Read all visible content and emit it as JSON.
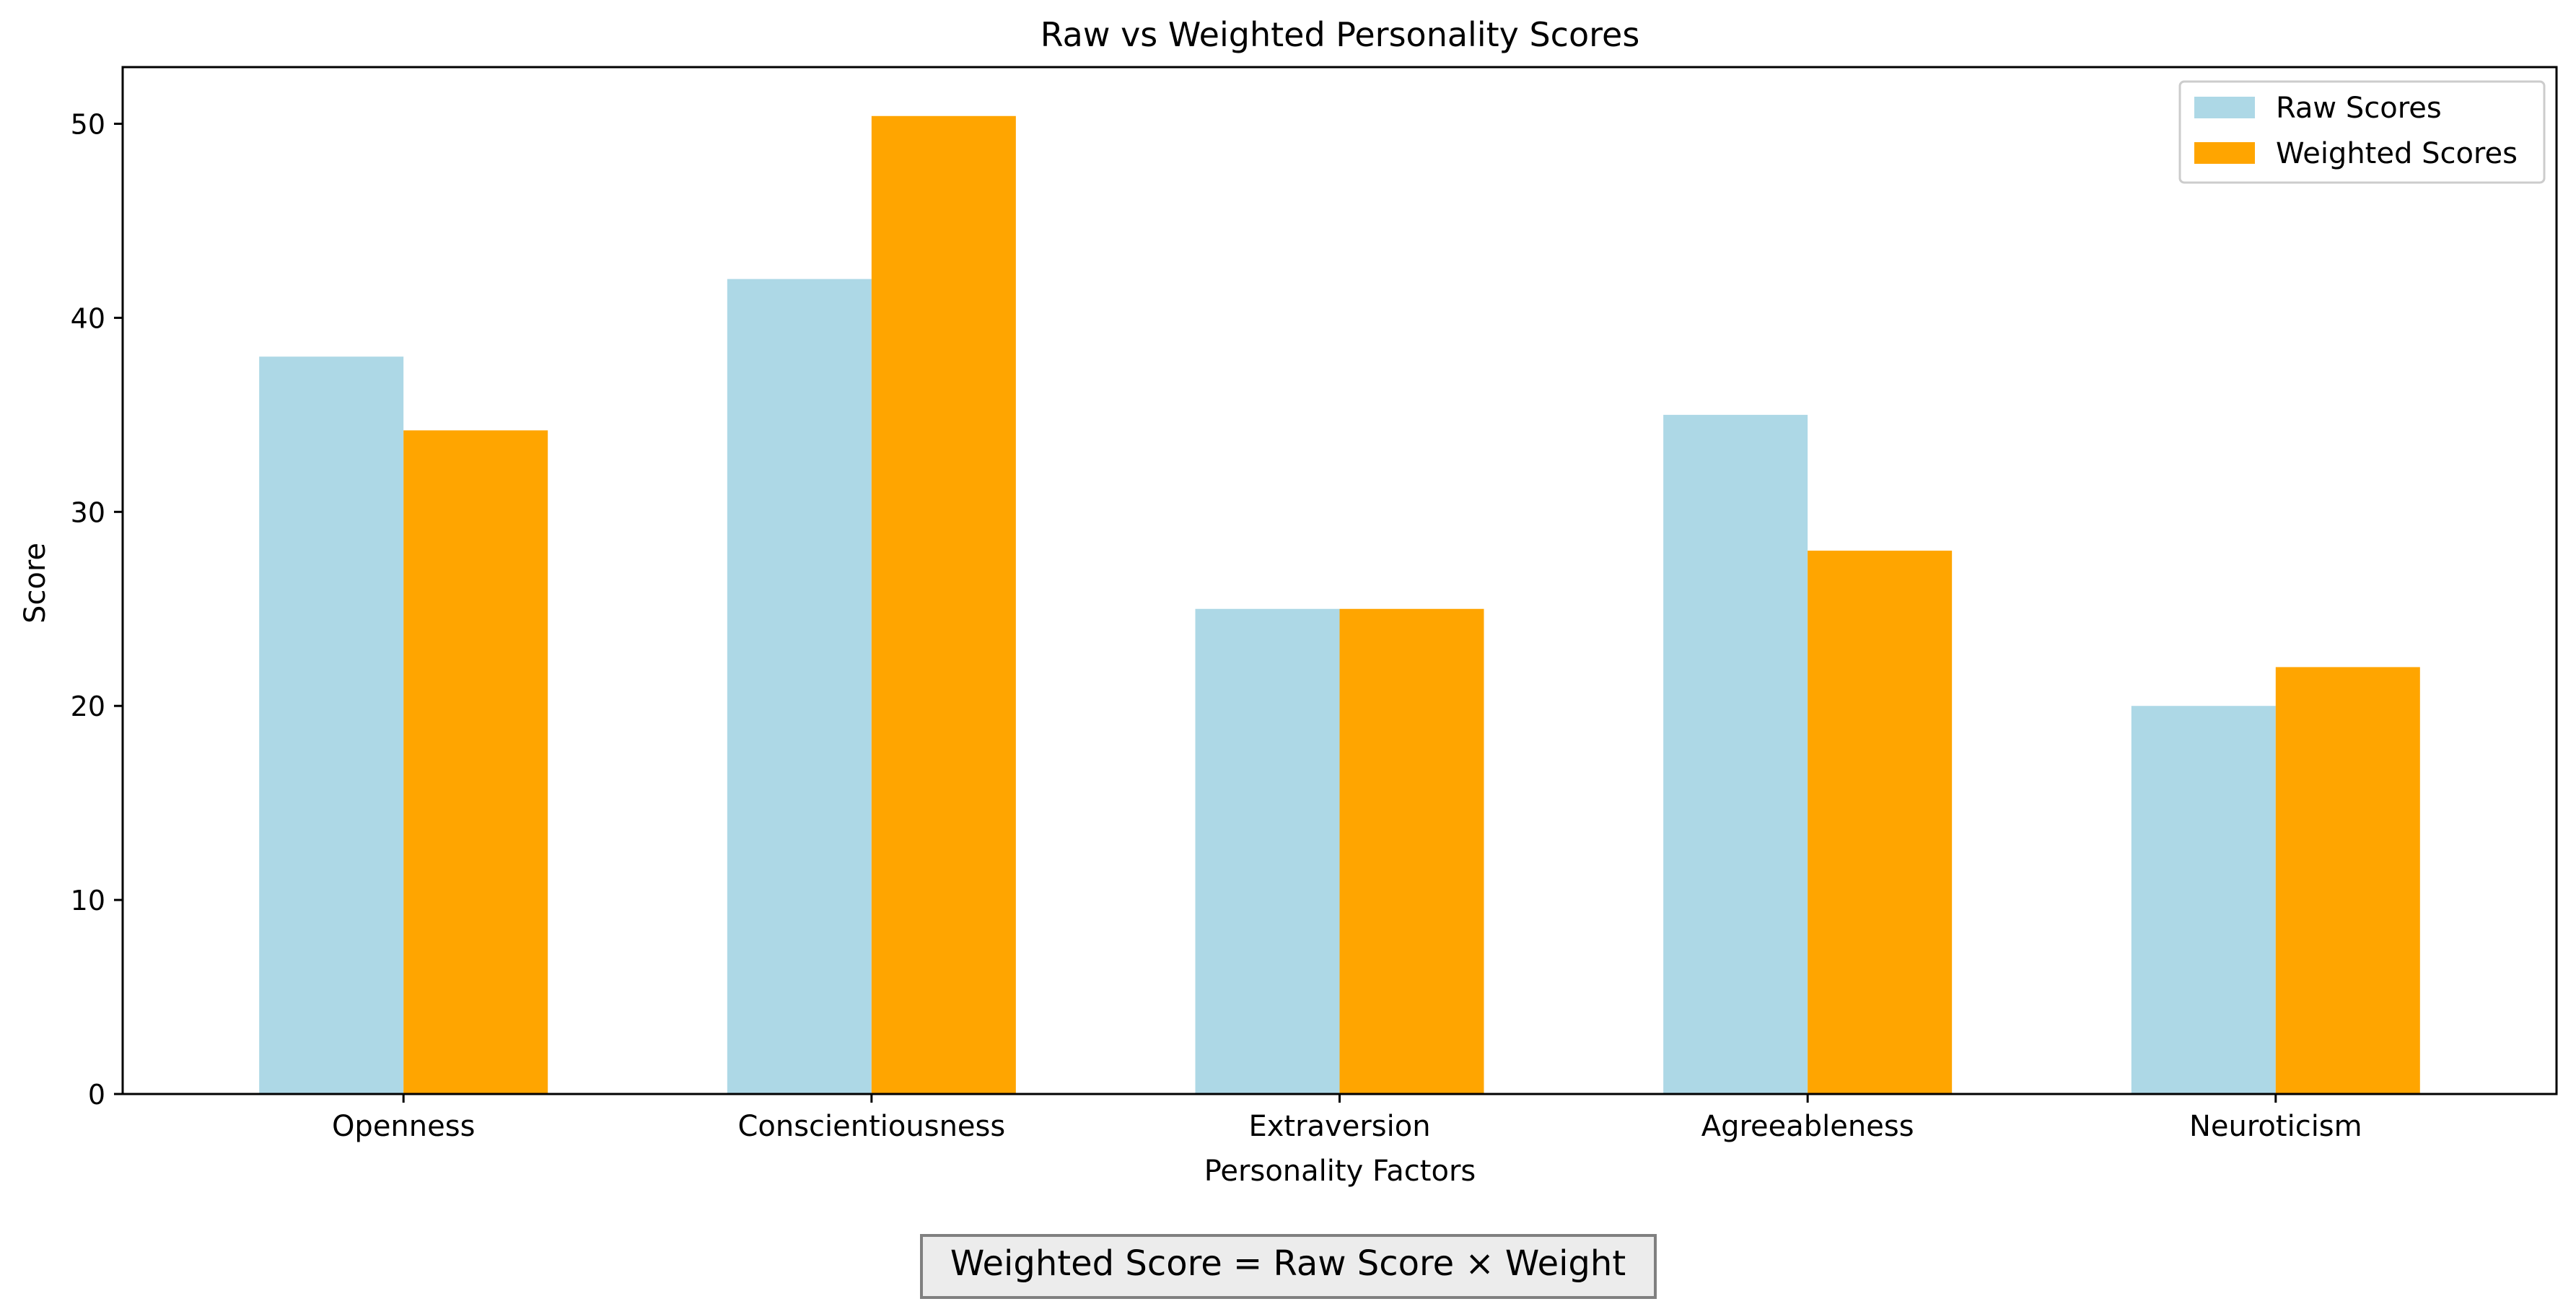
{
  "chart_data": {
    "type": "bar",
    "title": "Raw vs Weighted Personality Scores",
    "xlabel": "Personality Factors",
    "ylabel": "Score",
    "categories": [
      "Openness",
      "Conscientiousness",
      "Extraversion",
      "Agreeableness",
      "Neuroticism"
    ],
    "series": [
      {
        "name": "Raw Scores",
        "color": "#add8e6",
        "values": [
          38,
          42,
          25,
          35,
          20
        ]
      },
      {
        "name": "Weighted Scores",
        "color": "#ffa500",
        "values": [
          34.2,
          50.4,
          25,
          28,
          22
        ]
      }
    ],
    "ylim": [
      0,
      52.92
    ],
    "yticks": [
      0,
      10,
      20,
      30,
      40,
      50
    ],
    "grid": false,
    "legend_position": "top-right",
    "annotation": "Weighted Score = Raw Score × Weight"
  }
}
